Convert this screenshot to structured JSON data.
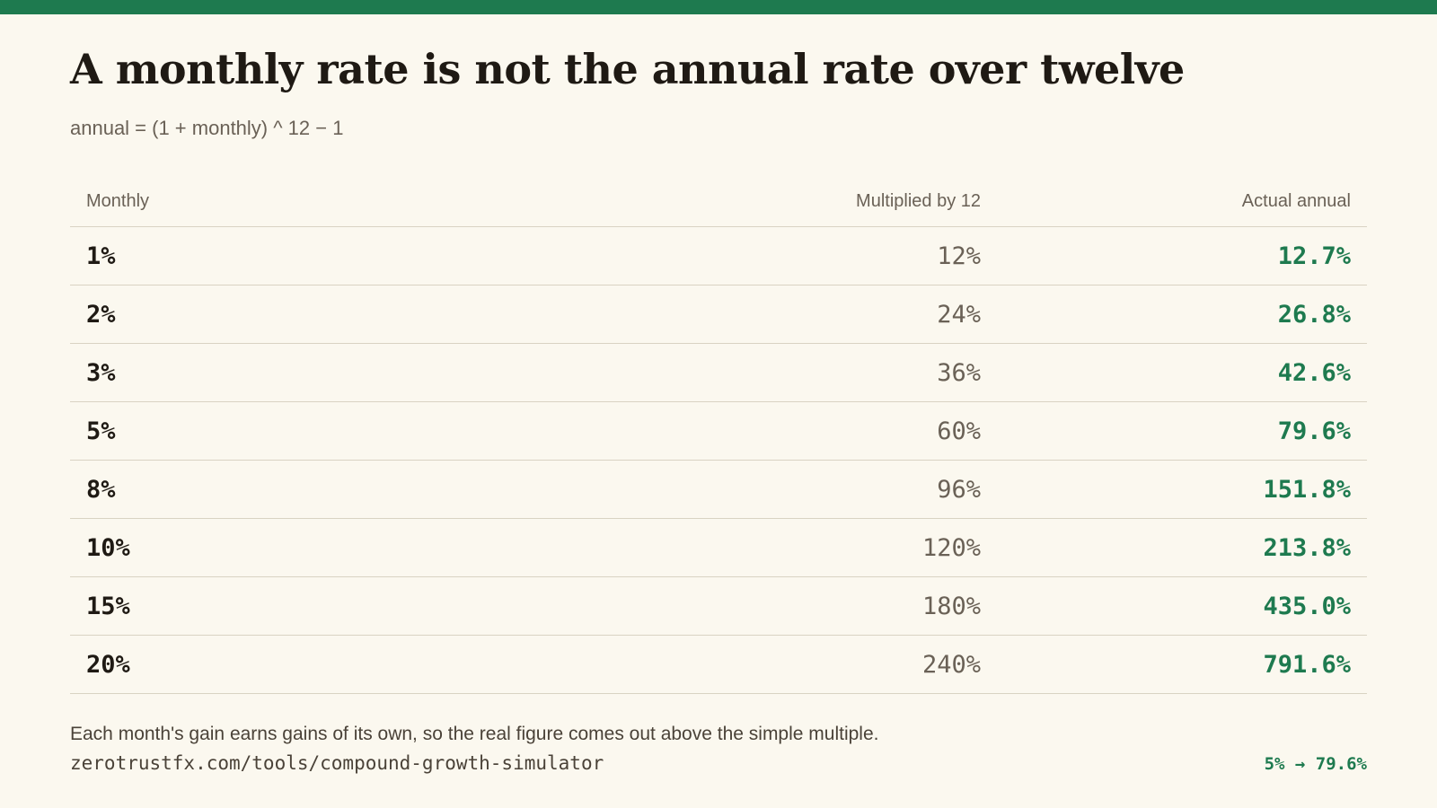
{
  "header": {
    "title": "A monthly rate is not the annual rate over twelve",
    "subtitle": "annual = (1 + monthly) ^ 12 − 1"
  },
  "table": {
    "columns": [
      "Monthly",
      "Multiplied by 12",
      "Actual annual"
    ],
    "rows": [
      {
        "monthly": "1%",
        "multiplied": "12%",
        "actual": "12.7%"
      },
      {
        "monthly": "2%",
        "multiplied": "24%",
        "actual": "26.8%"
      },
      {
        "monthly": "3%",
        "multiplied": "36%",
        "actual": "42.6%"
      },
      {
        "monthly": "5%",
        "multiplied": "60%",
        "actual": "79.6%"
      },
      {
        "monthly": "8%",
        "multiplied": "96%",
        "actual": "151.8%"
      },
      {
        "monthly": "10%",
        "multiplied": "120%",
        "actual": "213.8%"
      },
      {
        "monthly": "15%",
        "multiplied": "180%",
        "actual": "435.0%"
      },
      {
        "monthly": "20%",
        "multiplied": "240%",
        "actual": "791.6%"
      }
    ]
  },
  "footer": {
    "note": "Each month's gain earns gains of its own, so the real figure comes out above the simple multiple.",
    "url": "zerotrustfx.com/tools/compound-growth-simulator",
    "example": "5% → 79.6%"
  },
  "colors": {
    "accent": "#1e7a4f",
    "background": "#fbf8ef",
    "text": "#1f1a14",
    "muted": "#6a6156"
  }
}
